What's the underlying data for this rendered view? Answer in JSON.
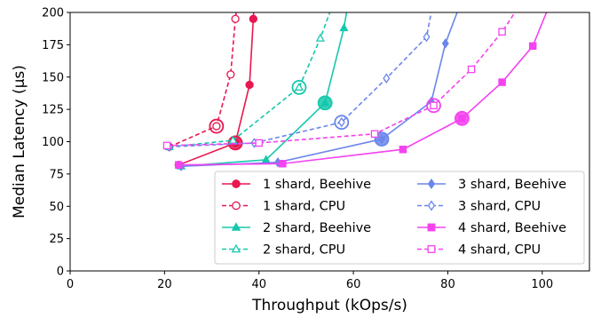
{
  "chart_data": {
    "type": "line",
    "title": "",
    "xlabel": "Throughput (kOps/s)",
    "ylabel": "Median Latency (μs)",
    "xlim": [
      0,
      110
    ],
    "ylim": [
      0,
      200
    ],
    "xticks": [
      "0",
      "20",
      "40",
      "60",
      "80",
      "100"
    ],
    "yticks": [
      "0",
      "25",
      "50",
      "75",
      "100",
      "125",
      "150",
      "175",
      "200"
    ],
    "grid": false,
    "legend_position": "lower-right",
    "legend_columns": 2,
    "series": [
      {
        "name": "1 shard, Beehive",
        "color": "#e8174f",
        "linestyle": "solid",
        "marker": "circle-filled",
        "points": [
          [
            23,
            82
          ],
          [
            35,
            99
          ],
          [
            38,
            144
          ],
          [
            38.8,
            195
          ],
          [
            39,
            210
          ]
        ],
        "highlight": [
          35,
          99
        ]
      },
      {
        "name": "1 shard, CPU",
        "color": "#e8174f",
        "linestyle": "dashed",
        "marker": "circle-open",
        "points": [
          [
            21,
            96
          ],
          [
            31,
            112
          ],
          [
            34,
            152
          ],
          [
            35,
            195
          ],
          [
            35.5,
            210
          ]
        ],
        "highlight": [
          31,
          112
        ]
      },
      {
        "name": "2 shard, Beehive",
        "color": "#15c8ad",
        "linestyle": "solid",
        "marker": "triangle-filled",
        "points": [
          [
            23.5,
            81
          ],
          [
            41.5,
            86
          ],
          [
            54,
            130
          ],
          [
            58,
            188
          ],
          [
            59,
            210
          ]
        ],
        "highlight": [
          54,
          130
        ]
      },
      {
        "name": "2 shard, CPU",
        "color": "#15c8ad",
        "linestyle": "dashed",
        "marker": "triangle-open",
        "points": [
          [
            21,
            96
          ],
          [
            34.5,
            101
          ],
          [
            48.5,
            142
          ],
          [
            53,
            180
          ],
          [
            56,
            210
          ]
        ],
        "highlight": [
          48.5,
          142
        ]
      },
      {
        "name": "3 shard, Beehive",
        "color": "#6b86ec",
        "linestyle": "solid",
        "marker": "diamond-filled",
        "points": [
          [
            23.5,
            81
          ],
          [
            44,
            84
          ],
          [
            66,
            102
          ],
          [
            76.5,
            131
          ],
          [
            79.5,
            176
          ],
          [
            83,
            210
          ]
        ],
        "highlight": [
          66,
          102
        ]
      },
      {
        "name": "3 shard, CPU",
        "color": "#6b86ec",
        "linestyle": "dashed",
        "marker": "diamond-open",
        "points": [
          [
            21,
            96
          ],
          [
            39,
            99
          ],
          [
            57.5,
            115
          ],
          [
            67,
            149
          ],
          [
            75.5,
            181
          ],
          [
            77,
            210
          ]
        ],
        "highlight": [
          57.5,
          115
        ]
      },
      {
        "name": "4 shard, Beehive",
        "color": "#f542f0",
        "linestyle": "solid",
        "marker": "square-filled",
        "points": [
          [
            23,
            82
          ],
          [
            45,
            83
          ],
          [
            70.5,
            94
          ],
          [
            83,
            118
          ],
          [
            91.5,
            146
          ],
          [
            98,
            174
          ],
          [
            102,
            210
          ]
        ],
        "highlight": [
          83,
          118
        ]
      },
      {
        "name": "4 shard, CPU",
        "color": "#f542f0",
        "linestyle": "dashed",
        "marker": "square-open",
        "points": [
          [
            20.5,
            97
          ],
          [
            40,
            99
          ],
          [
            64.5,
            106
          ],
          [
            77,
            128
          ],
          [
            85,
            156
          ],
          [
            91.5,
            185
          ],
          [
            96,
            210
          ]
        ],
        "highlight": [
          77,
          128
        ]
      }
    ]
  }
}
